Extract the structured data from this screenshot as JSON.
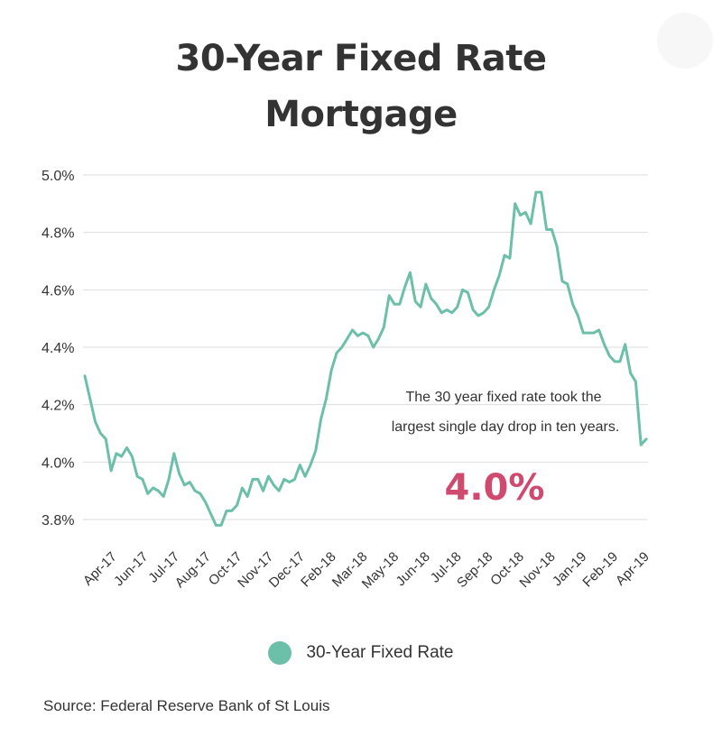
{
  "title_line1": "30-Year Fixed Rate",
  "title_line2": "Mortgage",
  "annotation": {
    "line1": "The 30 year fixed rate took the",
    "line2": "largest single day drop in ten years.",
    "highlight": "4.0%",
    "highlight_color": "#cf4a6e"
  },
  "legend_label": "30-Year Fixed Rate",
  "source": "Source:  Federal Reserve Bank of St Louis",
  "colors": {
    "line": "#6cbfa9",
    "grid": "#dddddd",
    "text": "#333333"
  },
  "chart_data": {
    "type": "line",
    "title": "30-Year Fixed Rate Mortgage",
    "xlabel": "",
    "ylabel": "",
    "ylim": [
      3.8,
      5.0
    ],
    "y_ticks": [
      "5.0%",
      "4.8%",
      "4.6%",
      "4.4%",
      "4.2%",
      "4.0%",
      "3.8%"
    ],
    "x_ticks": [
      "Apr-17",
      "Jun-17",
      "Jul-17",
      "Aug-17",
      "Oct-17",
      "Nov-17",
      "Dec-17",
      "Feb-18",
      "Mar-18",
      "May-18",
      "Jun-18",
      "Jul-18",
      "Sep-18",
      "Oct-18",
      "Nov-18",
      "Jan-19",
      "Feb-19",
      "Apr-19"
    ],
    "grid": true,
    "legend_position": "bottom",
    "series": [
      {
        "name": "30-Year Fixed Rate",
        "values": [
          4.3,
          4.22,
          4.14,
          4.1,
          4.08,
          3.97,
          4.03,
          4.02,
          4.05,
          4.02,
          3.95,
          3.94,
          3.89,
          3.91,
          3.9,
          3.88,
          3.94,
          4.03,
          3.96,
          3.92,
          3.93,
          3.9,
          3.89,
          3.86,
          3.82,
          3.78,
          3.78,
          3.83,
          3.83,
          3.85,
          3.91,
          3.88,
          3.94,
          3.94,
          3.9,
          3.95,
          3.92,
          3.9,
          3.94,
          3.93,
          3.94,
          3.99,
          3.95,
          3.99,
          4.04,
          4.15,
          4.22,
          4.32,
          4.38,
          4.4,
          4.43,
          4.46,
          4.44,
          4.45,
          4.44,
          4.4,
          4.43,
          4.47,
          4.58,
          4.55,
          4.55,
          4.61,
          4.66,
          4.56,
          4.54,
          4.62,
          4.57,
          4.55,
          4.52,
          4.53,
          4.52,
          4.54,
          4.6,
          4.59,
          4.53,
          4.51,
          4.52,
          4.54,
          4.6,
          4.65,
          4.72,
          4.71,
          4.9,
          4.86,
          4.87,
          4.83,
          4.94,
          4.94,
          4.81,
          4.81,
          4.75,
          4.63,
          4.62,
          4.55,
          4.51,
          4.45,
          4.45,
          4.45,
          4.46,
          4.41,
          4.37,
          4.35,
          4.35,
          4.41,
          4.31,
          4.28,
          4.06,
          4.08
        ]
      }
    ]
  }
}
